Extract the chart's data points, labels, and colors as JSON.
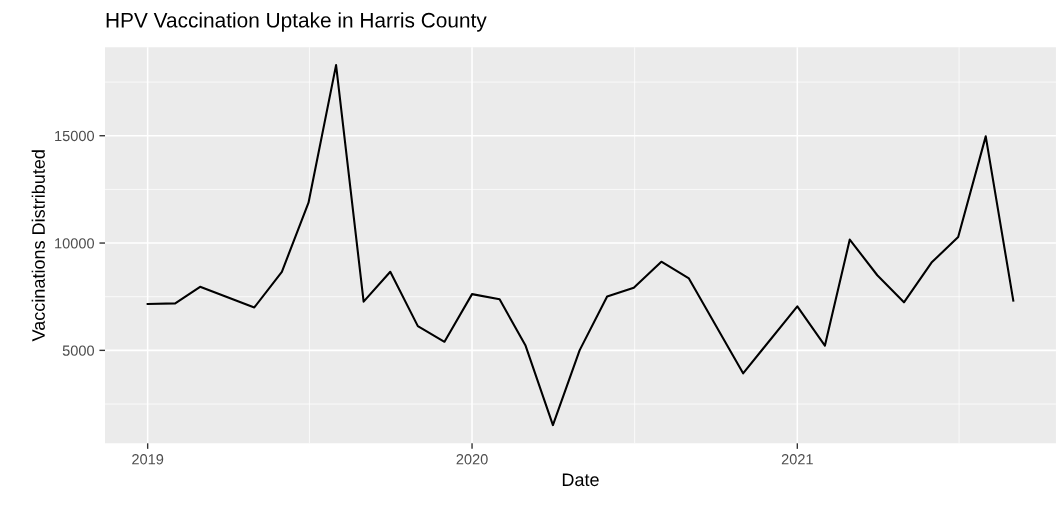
{
  "chart_data": {
    "type": "line",
    "title": "HPV Vaccination Uptake in Harris County",
    "xlabel": "Date",
    "ylabel": "Vaccinations Distributed",
    "x": [
      "2019-01",
      "2019-02",
      "2019-03",
      "2019-05",
      "2019-06",
      "2019-07",
      "2019-08",
      "2019-09",
      "2019-10",
      "2019-11",
      "2019-12",
      "2020-01",
      "2020-02",
      "2020-03",
      "2020-04",
      "2020-05",
      "2020-06",
      "2020-07",
      "2020-08",
      "2020-09",
      "2020-11",
      "2021-01",
      "2021-02",
      "2021-03",
      "2021-04",
      "2021-05",
      "2021-06",
      "2021-07",
      "2021-08",
      "2021-09"
    ],
    "series": [
      {
        "color": "#000000",
        "values": [
          7160,
          7190,
          7960,
          7000,
          8660,
          11880,
          18290,
          7270,
          8660,
          6130,
          5400,
          7620,
          7380,
          5240,
          1520,
          5000,
          7510,
          7920,
          9130,
          8350,
          3930,
          7050,
          5220,
          10160,
          8500,
          7240,
          9090,
          10280,
          14970,
          7320
        ]
      }
    ],
    "xlim": [
      "2018-11-14",
      "2021-10-19"
    ],
    "xticks": [
      "2019",
      {
        "value": "2019-07-02",
        "label": null
      },
      "2020",
      {
        "value": "2020-07-02",
        "label": null
      },
      "2021",
      {
        "value": "2021-07-02",
        "label": null
      }
    ],
    "ylim": [
      670,
      19120
    ],
    "yticks": [
      {
        "value": 2500,
        "label": null
      },
      5000,
      {
        "value": 7500,
        "label": null
      },
      10000,
      {
        "value": 12500,
        "label": null
      },
      15000,
      {
        "value": 17500,
        "label": null
      }
    ],
    "grid": true,
    "legend": false,
    "marker": "none",
    "line_style": "solid"
  }
}
